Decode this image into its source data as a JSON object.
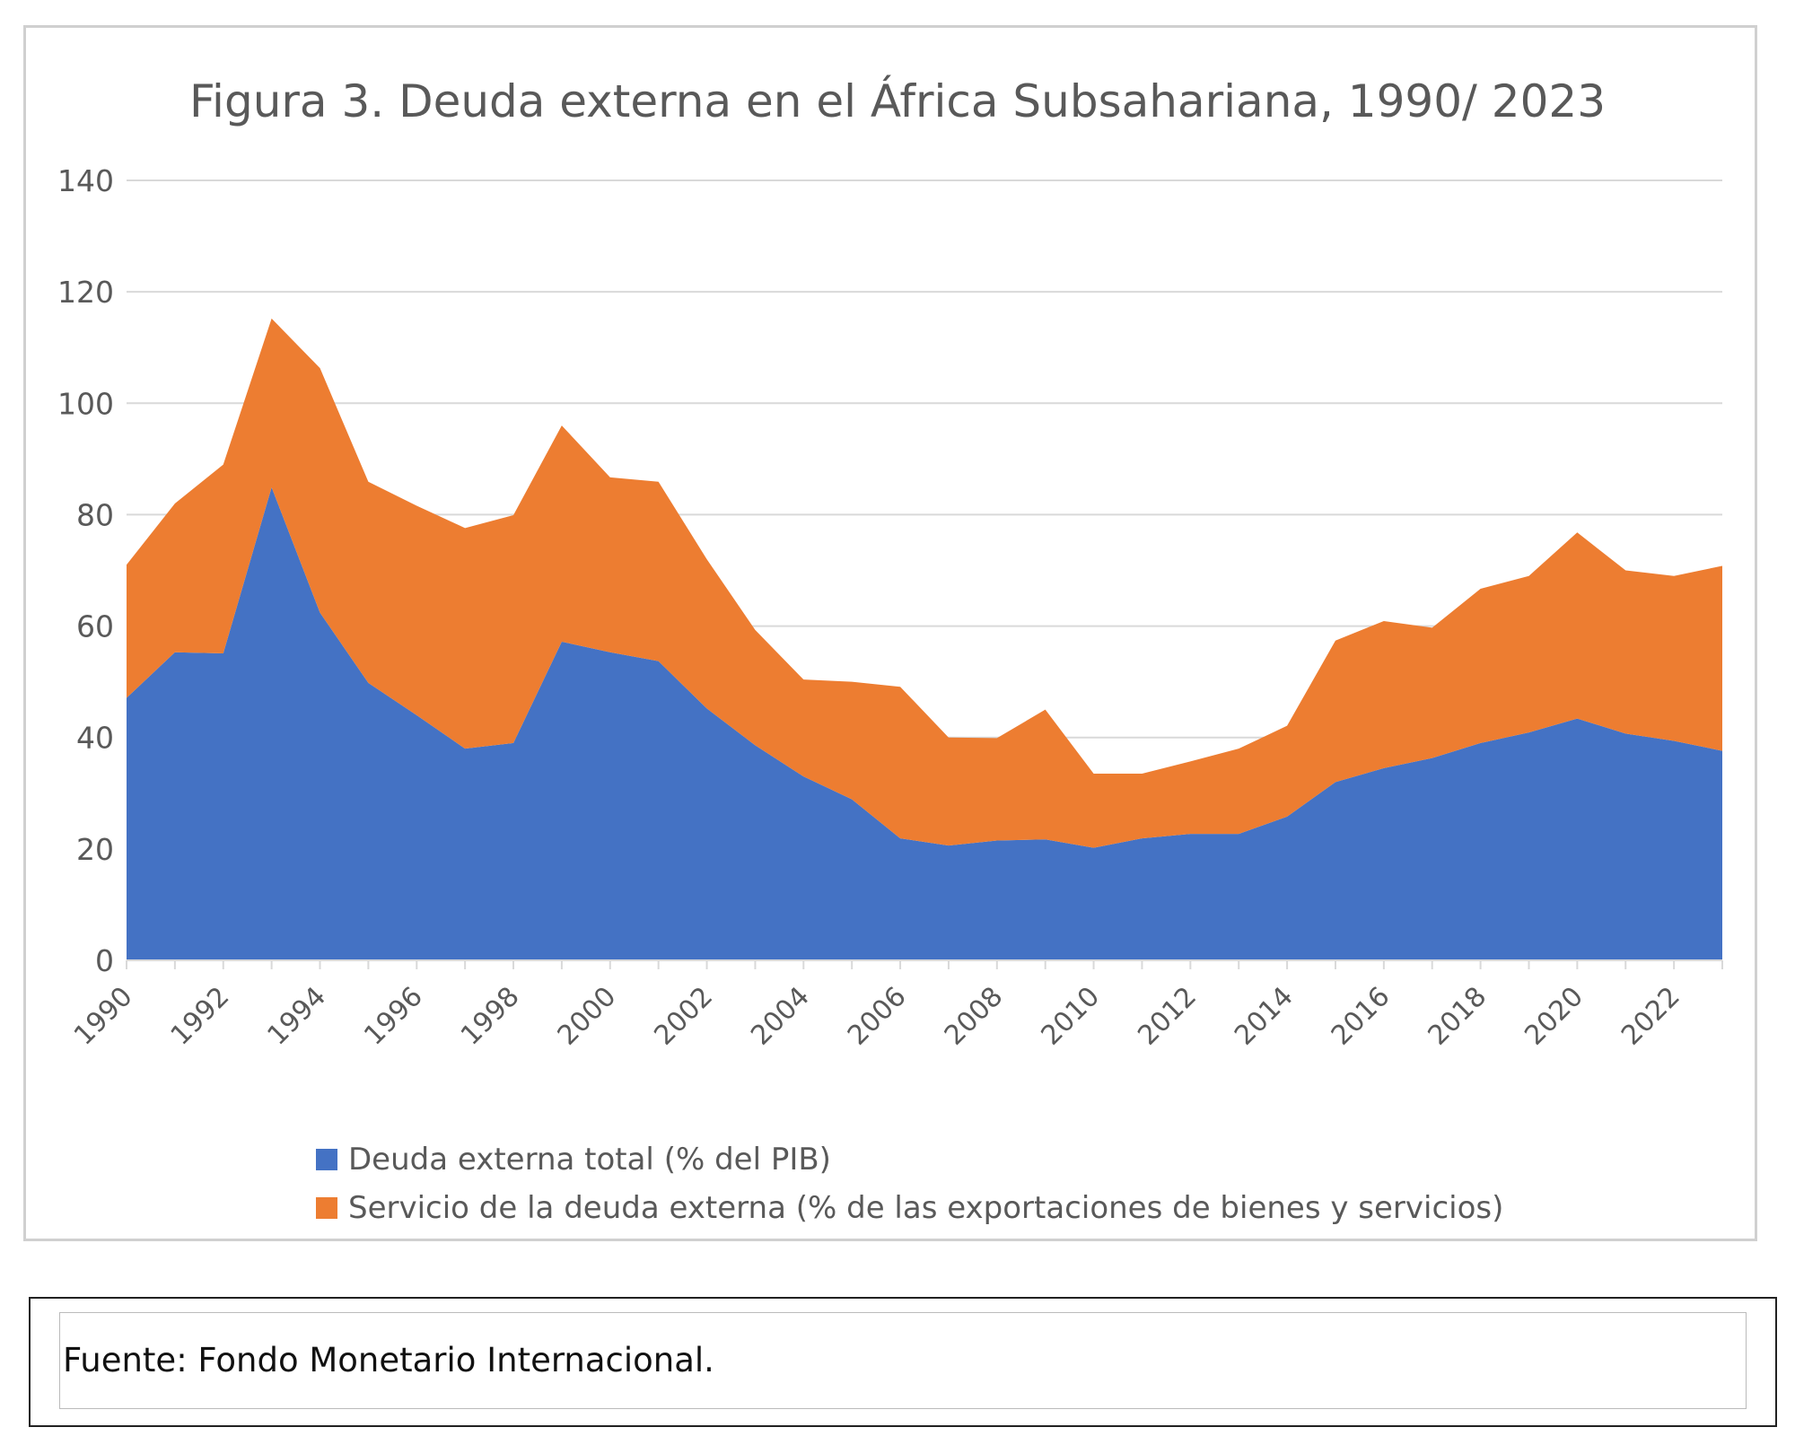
{
  "chart_data": {
    "type": "area",
    "stacked": true,
    "title": "Figura 3. Deuda externa en el África Subsahariana, 1990/ 2023",
    "xlabel": "",
    "ylabel": "",
    "ylim": [
      0,
      140
    ],
    "yticks": [
      0,
      20,
      40,
      60,
      80,
      100,
      120,
      140
    ],
    "xtick_labels": [
      "1990",
      "1992",
      "1994",
      "1996",
      "1998",
      "2000",
      "2002",
      "2004",
      "2006",
      "2008",
      "2010",
      "2012",
      "2014",
      "2016",
      "2018",
      "2020",
      "2022"
    ],
    "grid": true,
    "legend_position": "bottom",
    "x": [
      1990,
      1991,
      1992,
      1993,
      1994,
      1995,
      1996,
      1997,
      1998,
      1999,
      2000,
      2001,
      2002,
      2003,
      2004,
      2005,
      2006,
      2007,
      2008,
      2009,
      2010,
      2011,
      2012,
      2013,
      2014,
      2015,
      2016,
      2017,
      2018,
      2019,
      2020,
      2021,
      2022,
      2023
    ],
    "series": [
      {
        "name": "Deuda externa total (% del PIB)",
        "color": "#4472C4",
        "values": [
          47.1,
          55.3,
          55.1,
          84.9,
          62.4,
          49.8,
          44.0,
          38.0,
          39.0,
          57.2,
          55.3,
          53.7,
          45.2,
          38.6,
          33.0,
          28.9,
          21.9,
          20.6,
          21.5,
          21.7,
          20.2,
          21.9,
          22.7,
          22.7,
          25.8,
          32.0,
          34.5,
          36.3,
          39.0,
          40.9,
          43.4,
          40.7,
          39.4,
          37.6
        ]
      },
      {
        "name": "Servicio de la deuda externa (% de las exportaciones de bienes y servicios)",
        "color": "#ED7D31",
        "values": [
          23.9,
          26.7,
          33.9,
          30.3,
          43.9,
          36.1,
          37.6,
          39.6,
          40.9,
          38.8,
          31.4,
          32.2,
          26.8,
          20.7,
          17.4,
          21.1,
          27.2,
          19.4,
          18.4,
          23.3,
          13.3,
          11.6,
          13.0,
          15.3,
          16.3,
          25.4,
          26.4,
          23.4,
          27.7,
          28.1,
          33.4,
          29.3,
          29.6,
          33.2
        ]
      }
    ]
  },
  "source": "Fuente: Fondo Monetario Internacional."
}
